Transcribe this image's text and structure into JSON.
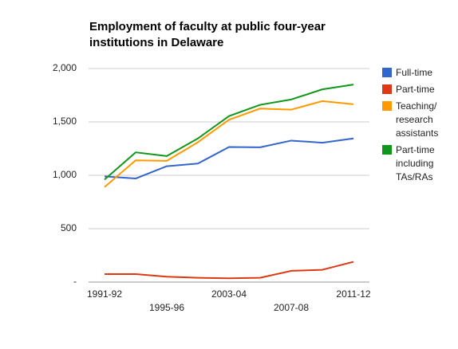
{
  "chart_data": {
    "type": "line",
    "title": "Employment of faculty at public four-year institutions in Delaware",
    "categories": [
      "1991-92",
      null,
      "1995-96",
      null,
      "2003-04",
      null,
      "2007-08",
      null,
      "2011-12"
    ],
    "series": [
      {
        "name": "Full-time",
        "color": "#3366cc",
        "values": [
          990,
          970,
          1085,
          1110,
          1265,
          1262,
          1325,
          1305,
          1345
        ]
      },
      {
        "name": "Part-time",
        "color": "#dc3912",
        "values": [
          75,
          75,
          50,
          40,
          35,
          40,
          105,
          115,
          190
        ]
      },
      {
        "name": "Teaching/ research assistants",
        "color": "#ff9900",
        "values": [
          890,
          1140,
          1135,
          1310,
          1520,
          1625,
          1615,
          1695,
          1665
        ]
      },
      {
        "name": "Part-time including TAs/RAs",
        "color": "#109618",
        "values": [
          960,
          1215,
          1180,
          1345,
          1555,
          1660,
          1710,
          1805,
          1850
        ]
      }
    ],
    "ylim": [
      0,
      2000
    ],
    "yticks": [
      {
        "value": 0,
        "label": "-"
      },
      500,
      {
        "value": 1000,
        "label": "1,000"
      },
      {
        "value": 1500,
        "label": "1,500"
      },
      {
        "value": 2000,
        "label": "2,000"
      }
    ],
    "grid": true,
    "legend": "right"
  }
}
